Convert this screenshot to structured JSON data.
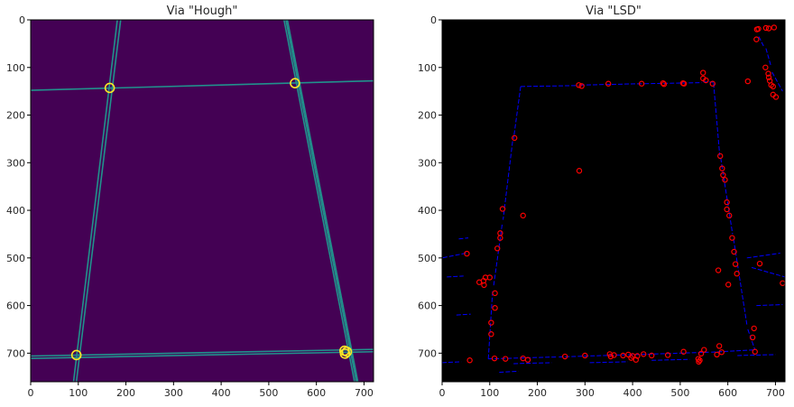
{
  "chart_data": [
    {
      "type": "heatmap",
      "title": "Via \"Hough\"",
      "xlabel": "",
      "ylabel": "",
      "xlim": [
        0,
        720
      ],
      "ylim": [
        760,
        0
      ],
      "x_ticks": [
        0,
        100,
        200,
        300,
        400,
        500,
        600,
        700
      ],
      "y_ticks": [
        0,
        100,
        200,
        300,
        400,
        500,
        600,
        700
      ],
      "grid": false,
      "colors": {
        "background": "#440154",
        "line": "#21918c",
        "marker": "#fde725"
      },
      "lines": [
        {
          "p1": [
            0,
            148
          ],
          "p2": [
            720,
            128
          ]
        },
        {
          "p1": [
            0,
            706
          ],
          "p2": [
            720,
            692
          ]
        },
        {
          "p1": [
            0,
            711
          ],
          "p2": [
            720,
            697
          ]
        },
        {
          "p1": [
            90,
            760
          ],
          "p2": [
            182,
            0
          ]
        },
        {
          "p1": [
            96,
            760
          ],
          "p2": [
            189,
            0
          ]
        },
        {
          "p1": [
            532,
            0
          ],
          "p2": [
            680,
            760
          ]
        },
        {
          "p1": [
            536,
            0
          ],
          "p2": [
            684,
            760
          ]
        },
        {
          "p1": [
            539,
            0
          ],
          "p2": [
            687,
            760
          ]
        }
      ],
      "points": [
        {
          "x": 166,
          "y": 143
        },
        {
          "x": 555,
          "y": 133
        },
        {
          "x": 96,
          "y": 704
        },
        {
          "x": 659,
          "y": 695
        },
        {
          "x": 660,
          "y": 701
        },
        {
          "x": 664,
          "y": 697
        }
      ]
    },
    {
      "type": "scatter",
      "title": "Via \"LSD\"",
      "xlabel": "",
      "ylabel": "",
      "xlim": [
        0,
        720
      ],
      "ylim": [
        760,
        0
      ],
      "x_ticks": [
        0,
        100,
        200,
        300,
        400,
        500,
        600,
        700
      ],
      "y_ticks": [
        0,
        100,
        200,
        300,
        400,
        500,
        600,
        700
      ],
      "grid": false,
      "colors": {
        "background": "#000000",
        "line": "#0000ff",
        "marker": "#ff0000"
      },
      "segments": [
        {
          "p1": [
            165,
            140
          ],
          "p2": [
            285,
            138
          ]
        },
        {
          "p1": [
            290,
            137
          ],
          "p2": [
            420,
            134
          ]
        },
        {
          "p1": [
            425,
            134
          ],
          "p2": [
            545,
            132
          ]
        },
        {
          "p1": [
            548,
            130
          ],
          "p2": [
            570,
            131
          ]
        },
        {
          "p1": [
            165,
            140
          ],
          "p2": [
            150,
            250
          ]
        },
        {
          "p1": [
            148,
            255
          ],
          "p2": [
            128,
            420
          ]
        },
        {
          "p1": [
            126,
            430
          ],
          "p2": [
            108,
            560
          ]
        },
        {
          "p1": [
            106,
            570
          ],
          "p2": [
            97,
            712
          ]
        },
        {
          "p1": [
            570,
            133
          ],
          "p2": [
            583,
            285
          ]
        },
        {
          "p1": [
            585,
            290
          ],
          "p2": [
            610,
            450
          ]
        },
        {
          "p1": [
            612,
            460
          ],
          "p2": [
            640,
            640
          ]
        },
        {
          "p1": [
            642,
            650
          ],
          "p2": [
            657,
            693
          ]
        },
        {
          "p1": [
            97,
            712
          ],
          "p2": [
            240,
            708
          ]
        },
        {
          "p1": [
            245,
            708
          ],
          "p2": [
            400,
            703
          ]
        },
        {
          "p1": [
            405,
            703
          ],
          "p2": [
            560,
            698
          ]
        },
        {
          "p1": [
            565,
            698
          ],
          "p2": [
            657,
            693
          ]
        },
        {
          "p1": [
            665,
            35
          ],
          "p2": [
            675,
            55
          ]
        },
        {
          "p1": [
            680,
            60
          ],
          "p2": [
            690,
            95
          ]
        },
        {
          "p1": [
            693,
            110
          ],
          "p2": [
            715,
            150
          ]
        },
        {
          "p1": [
            50,
            490
          ],
          "p2": [
            0,
            500
          ]
        },
        {
          "p1": [
            640,
            500
          ],
          "p2": [
            710,
            490
          ]
        },
        {
          "p1": [
            650,
            520
          ],
          "p2": [
            720,
            540
          ]
        },
        {
          "p1": [
            35,
            460
          ],
          "p2": [
            55,
            458
          ]
        },
        {
          "p1": [
            10,
            540
          ],
          "p2": [
            45,
            538
          ]
        },
        {
          "p1": [
            0,
            720
          ],
          "p2": [
            40,
            718
          ]
        },
        {
          "p1": [
            150,
            722
          ],
          "p2": [
            230,
            720
          ]
        },
        {
          "p1": [
            310,
            720
          ],
          "p2": [
            390,
            718
          ]
        },
        {
          "p1": [
            440,
            715
          ],
          "p2": [
            520,
            713
          ]
        },
        {
          "p1": [
            620,
            705
          ],
          "p2": [
            700,
            703
          ]
        },
        {
          "p1": [
            660,
            600
          ],
          "p2": [
            715,
            598
          ]
        },
        {
          "p1": [
            30,
            620
          ],
          "p2": [
            60,
            618
          ]
        },
        {
          "p1": [
            120,
            740
          ],
          "p2": [
            160,
            738
          ]
        }
      ],
      "points": [
        {
          "x": 287,
          "y": 137
        },
        {
          "x": 293,
          "y": 139
        },
        {
          "x": 349,
          "y": 134
        },
        {
          "x": 419,
          "y": 134
        },
        {
          "x": 464,
          "y": 133
        },
        {
          "x": 466,
          "y": 135
        },
        {
          "x": 506,
          "y": 133
        },
        {
          "x": 508,
          "y": 134
        },
        {
          "x": 548,
          "y": 111
        },
        {
          "x": 548,
          "y": 123
        },
        {
          "x": 554,
          "y": 127
        },
        {
          "x": 568,
          "y": 134
        },
        {
          "x": 642,
          "y": 129
        },
        {
          "x": 661,
          "y": 20
        },
        {
          "x": 664,
          "y": 19
        },
        {
          "x": 660,
          "y": 41
        },
        {
          "x": 680,
          "y": 17
        },
        {
          "x": 686,
          "y": 18
        },
        {
          "x": 697,
          "y": 16
        },
        {
          "x": 679,
          "y": 100
        },
        {
          "x": 685,
          "y": 113
        },
        {
          "x": 686,
          "y": 121
        },
        {
          "x": 688,
          "y": 128
        },
        {
          "x": 691,
          "y": 137
        },
        {
          "x": 695,
          "y": 140
        },
        {
          "x": 695,
          "y": 157
        },
        {
          "x": 701,
          "y": 162
        },
        {
          "x": 152,
          "y": 248
        },
        {
          "x": 288,
          "y": 317
        },
        {
          "x": 127,
          "y": 397
        },
        {
          "x": 170,
          "y": 411
        },
        {
          "x": 122,
          "y": 448
        },
        {
          "x": 122,
          "y": 458
        },
        {
          "x": 116,
          "y": 480
        },
        {
          "x": 52,
          "y": 491
        },
        {
          "x": 78,
          "y": 551
        },
        {
          "x": 87,
          "y": 548
        },
        {
          "x": 91,
          "y": 541
        },
        {
          "x": 100,
          "y": 541
        },
        {
          "x": 88,
          "y": 557
        },
        {
          "x": 111,
          "y": 574
        },
        {
          "x": 111,
          "y": 605
        },
        {
          "x": 103,
          "y": 636
        },
        {
          "x": 103,
          "y": 660
        },
        {
          "x": 58,
          "y": 715
        },
        {
          "x": 110,
          "y": 711
        },
        {
          "x": 133,
          "y": 712
        },
        {
          "x": 170,
          "y": 711
        },
        {
          "x": 180,
          "y": 714
        },
        {
          "x": 258,
          "y": 707
        },
        {
          "x": 300,
          "y": 705
        },
        {
          "x": 352,
          "y": 702
        },
        {
          "x": 354,
          "y": 707
        },
        {
          "x": 361,
          "y": 704
        },
        {
          "x": 380,
          "y": 705
        },
        {
          "x": 391,
          "y": 703
        },
        {
          "x": 397,
          "y": 710
        },
        {
          "x": 400,
          "y": 706
        },
        {
          "x": 407,
          "y": 714
        },
        {
          "x": 410,
          "y": 706
        },
        {
          "x": 423,
          "y": 702
        },
        {
          "x": 440,
          "y": 705
        },
        {
          "x": 474,
          "y": 704
        },
        {
          "x": 507,
          "y": 697
        },
        {
          "x": 538,
          "y": 712
        },
        {
          "x": 539,
          "y": 718
        },
        {
          "x": 541,
          "y": 715
        },
        {
          "x": 544,
          "y": 701
        },
        {
          "x": 550,
          "y": 693
        },
        {
          "x": 577,
          "y": 703
        },
        {
          "x": 582,
          "y": 685
        },
        {
          "x": 587,
          "y": 698
        },
        {
          "x": 584,
          "y": 286
        },
        {
          "x": 588,
          "y": 312
        },
        {
          "x": 590,
          "y": 326
        },
        {
          "x": 594,
          "y": 336
        },
        {
          "x": 598,
          "y": 383
        },
        {
          "x": 598,
          "y": 398
        },
        {
          "x": 603,
          "y": 411
        },
        {
          "x": 609,
          "y": 458
        },
        {
          "x": 613,
          "y": 487
        },
        {
          "x": 616,
          "y": 513
        },
        {
          "x": 619,
          "y": 533
        },
        {
          "x": 580,
          "y": 526
        },
        {
          "x": 601,
          "y": 556
        },
        {
          "x": 655,
          "y": 648
        },
        {
          "x": 652,
          "y": 667
        },
        {
          "x": 657,
          "y": 697
        },
        {
          "x": 667,
          "y": 512
        },
        {
          "x": 715,
          "y": 553
        }
      ]
    }
  ]
}
